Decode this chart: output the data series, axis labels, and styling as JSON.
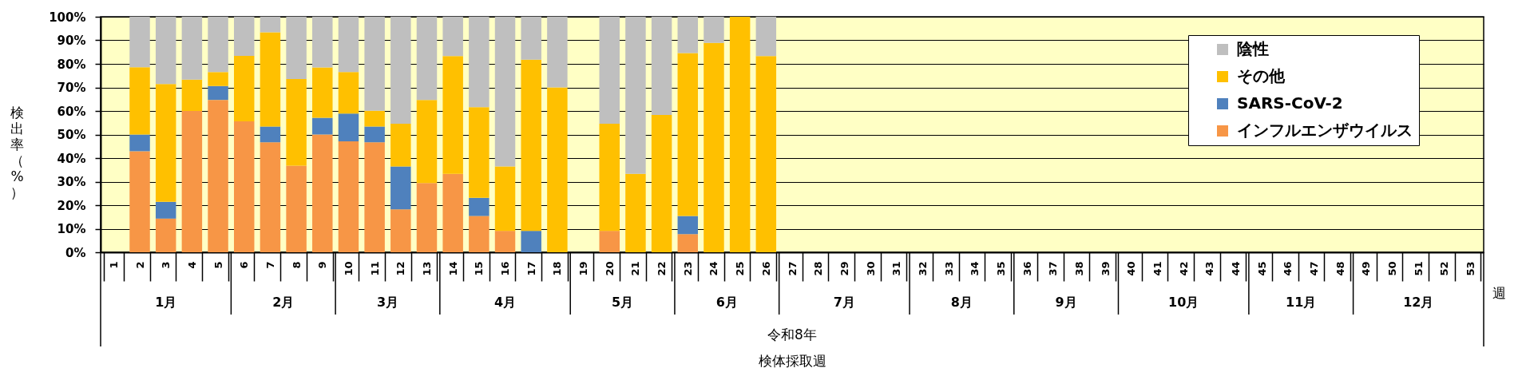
{
  "chart_data": {
    "type": "bar",
    "stacked": true,
    "ylabel": "検出率（%）",
    "categories": [
      "1",
      "2",
      "3",
      "4",
      "5",
      "6",
      "7",
      "8",
      "9",
      "10",
      "11",
      "12",
      "13",
      "14",
      "15",
      "16",
      "17",
      "18",
      "19",
      "20",
      "21",
      "22",
      "23",
      "24",
      "25",
      "26",
      "27",
      "28",
      "29",
      "30",
      "31",
      "32",
      "33",
      "34",
      "35",
      "36",
      "37",
      "38",
      "39",
      "40",
      "41",
      "42",
      "43",
      "44",
      "45",
      "46",
      "47",
      "48",
      "49",
      "50",
      "51",
      "52",
      "53"
    ],
    "series": [
      {
        "name": "インフルエンザウイルス",
        "color": "#f79646",
        "values": [
          null,
          42.9,
          14.3,
          60.0,
          64.7,
          55.6,
          46.7,
          36.8,
          50.0,
          47.1,
          46.7,
          18.2,
          29.4,
          33.3,
          15.4,
          9.1,
          null,
          null,
          null,
          9.1,
          null,
          null,
          7.7,
          null,
          null,
          null,
          null,
          null,
          null,
          null,
          null,
          null,
          null,
          null,
          null,
          null,
          null,
          null,
          null,
          null,
          null,
          null,
          null,
          null,
          null,
          null,
          null,
          null,
          null,
          null,
          null,
          null,
          null
        ]
      },
      {
        "name": "SARS-CoV-2",
        "color": "#4f81bd",
        "values": [
          null,
          7.1,
          7.1,
          null,
          5.9,
          null,
          6.7,
          null,
          7.1,
          11.8,
          6.7,
          18.2,
          null,
          null,
          7.7,
          null,
          9.1,
          null,
          null,
          null,
          null,
          null,
          7.7,
          null,
          null,
          null,
          null,
          null,
          null,
          null,
          null,
          null,
          null,
          null,
          null,
          null,
          null,
          null,
          null,
          null,
          null,
          null,
          null,
          null,
          null,
          null,
          null,
          null,
          null,
          null,
          null,
          null,
          null
        ]
      },
      {
        "name": "その他",
        "color": "#ffc000",
        "values": [
          null,
          28.6,
          50.0,
          13.3,
          5.9,
          27.8,
          40.0,
          36.8,
          21.4,
          17.6,
          6.7,
          18.2,
          35.3,
          50.0,
          38.5,
          27.3,
          72.7,
          70.0,
          null,
          45.5,
          33.3,
          58.3,
          69.2,
          88.9,
          100,
          83.3,
          null,
          null,
          null,
          null,
          null,
          null,
          null,
          null,
          null,
          null,
          null,
          null,
          null,
          null,
          null,
          null,
          null,
          null,
          null,
          null,
          null,
          null,
          null,
          null,
          null,
          null,
          null
        ]
      },
      {
        "name": "陰性",
        "color": "#bfbfbf",
        "values": [
          null,
          21.4,
          28.6,
          26.7,
          23.5,
          16.6,
          6.6,
          26.4,
          21.5,
          23.5,
          39.9,
          45.4,
          35.3,
          16.7,
          38.4,
          63.6,
          18.2,
          30.0,
          null,
          45.4,
          66.7,
          41.7,
          15.4,
          11.1,
          null,
          16.7,
          null,
          null,
          null,
          null,
          null,
          null,
          null,
          null,
          null,
          null,
          null,
          null,
          null,
          null,
          null,
          null,
          null,
          null,
          null,
          null,
          null,
          null,
          null,
          null,
          null,
          null,
          null
        ]
      }
    ],
    "ylim": [
      0,
      100
    ],
    "yticks": [
      {
        "value": 0,
        "label": "0%"
      },
      {
        "value": 10,
        "label": "10%"
      },
      {
        "value": 20,
        "label": "20%"
      },
      {
        "value": 30,
        "label": "30%"
      },
      {
        "value": 40,
        "label": "40%"
      },
      {
        "value": 50,
        "label": "50%"
      },
      {
        "value": 60,
        "label": "60%"
      },
      {
        "value": 70,
        "label": "70%"
      },
      {
        "value": 80,
        "label": "80%"
      },
      {
        "value": 90,
        "label": "90%"
      },
      {
        "value": 100,
        "label": "100%"
      }
    ],
    "grid": "y",
    "legend": "top right",
    "annotations": [
      "1月",
      "2月",
      "3月",
      "4月",
      "5月",
      "6月",
      "7月",
      "8月",
      "9月",
      "10月",
      "11月",
      "12月",
      "令和8年",
      "週",
      "検体採取週"
    ]
  }
}
